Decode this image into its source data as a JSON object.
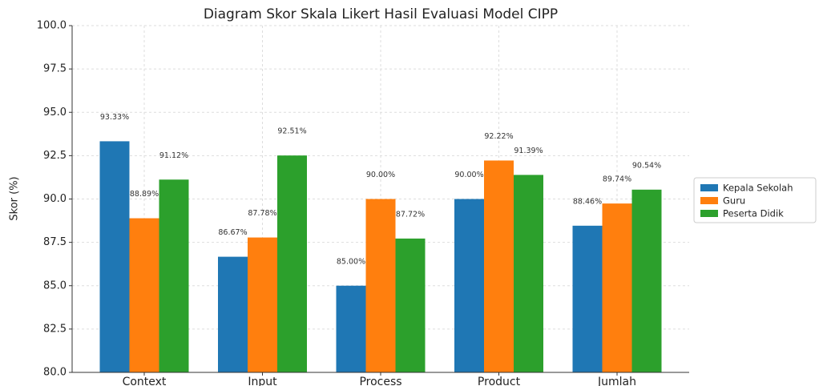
{
  "chart_data": {
    "type": "bar",
    "title": "Diagram Skor Skala Likert Hasil Evaluasi Model CIPP",
    "y_label": "Skor (%)",
    "categories": [
      "Context",
      "Input",
      "Process",
      "Product",
      "Jumlah"
    ],
    "series": [
      {
        "name": "Kepala Sekolah",
        "color": "#1f77b4",
        "values": [
          93.33,
          86.67,
          85.0,
          90.0,
          88.46
        ],
        "value_labels": [
          "93.33%",
          "86.67%",
          "85.00%",
          "90.00%",
          "88.46%"
        ]
      },
      {
        "name": "Guru",
        "color": "#ff7f0e",
        "values": [
          88.89,
          87.78,
          90.0,
          92.22,
          89.74
        ],
        "value_labels": [
          "88.89%",
          "87.78%",
          "90.00%",
          "92.22%",
          "89.74%"
        ]
      },
      {
        "name": "Peserta Didik",
        "color": "#2ca02c",
        "values": [
          91.12,
          92.51,
          87.72,
          91.39,
          90.54
        ],
        "value_labels": [
          "91.12%",
          "92.51%",
          "87.72%",
          "91.39%",
          "90.54%"
        ]
      }
    ],
    "ylim": [
      80,
      100
    ],
    "yticks": [
      {
        "value": 80,
        "label": "80.0"
      },
      82.5,
      {
        "value": 85,
        "label": "85.0"
      },
      87.5,
      {
        "value": 90,
        "label": "90.0"
      },
      92.5,
      {
        "value": 95,
        "label": "95.0"
      },
      97.5,
      {
        "value": 100,
        "label": "100.0"
      }
    ],
    "grid": true,
    "legend": "right"
  }
}
